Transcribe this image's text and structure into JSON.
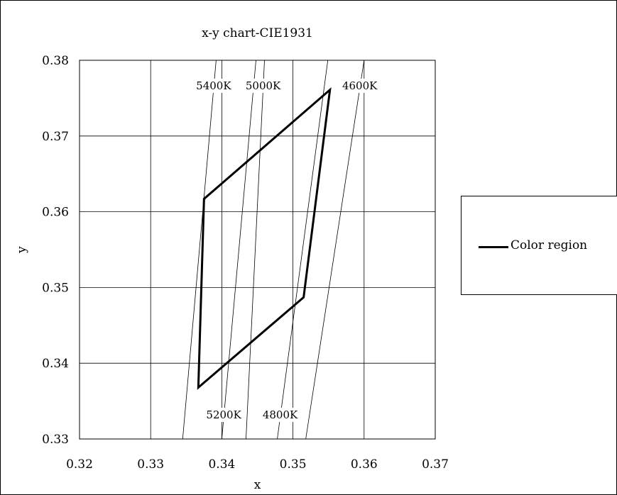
{
  "chart_data": {
    "type": "line",
    "title": "x-y chart-CIE1931",
    "xlabel": "x",
    "ylabel": "y",
    "xlim": [
      0.32,
      0.37
    ],
    "ylim": [
      0.33,
      0.38
    ],
    "xticks": [
      "0.32",
      "0.33",
      "0.34",
      "0.35",
      "0.36",
      "0.37"
    ],
    "yticks": [
      "0.33",
      "0.34",
      "0.35",
      "0.36",
      "0.37",
      "0.38"
    ],
    "grid": true,
    "legend_position": "right",
    "series": [
      {
        "name": "Color region",
        "closed": true,
        "points": [
          {
            "x": 0.3375,
            "y": 0.3617
          },
          {
            "x": 0.3552,
            "y": 0.3761
          },
          {
            "x": 0.3515,
            "y": 0.3487
          },
          {
            "x": 0.3367,
            "y": 0.3368
          }
        ]
      }
    ],
    "cct_lines": [
      {
        "label": "5400K",
        "x_bottom": 0.3345,
        "x_top": 0.3392
      },
      {
        "label": "5200K",
        "x_bottom": 0.34,
        "x_top": 0.3448
      },
      {
        "label": "5000K",
        "x_bottom": 0.3434,
        "x_top": 0.346
      },
      {
        "label": "4800K",
        "x_bottom": 0.3478,
        "x_top": 0.3549
      },
      {
        "label": "4600K",
        "x_bottom": 0.3518,
        "x_top": 0.36
      }
    ],
    "cct_labels_top": [
      "5400K",
      "5000K",
      "4600K"
    ],
    "cct_labels_bottom": [
      "5200K",
      "4800K"
    ]
  },
  "legend": {
    "label": "Color region"
  }
}
